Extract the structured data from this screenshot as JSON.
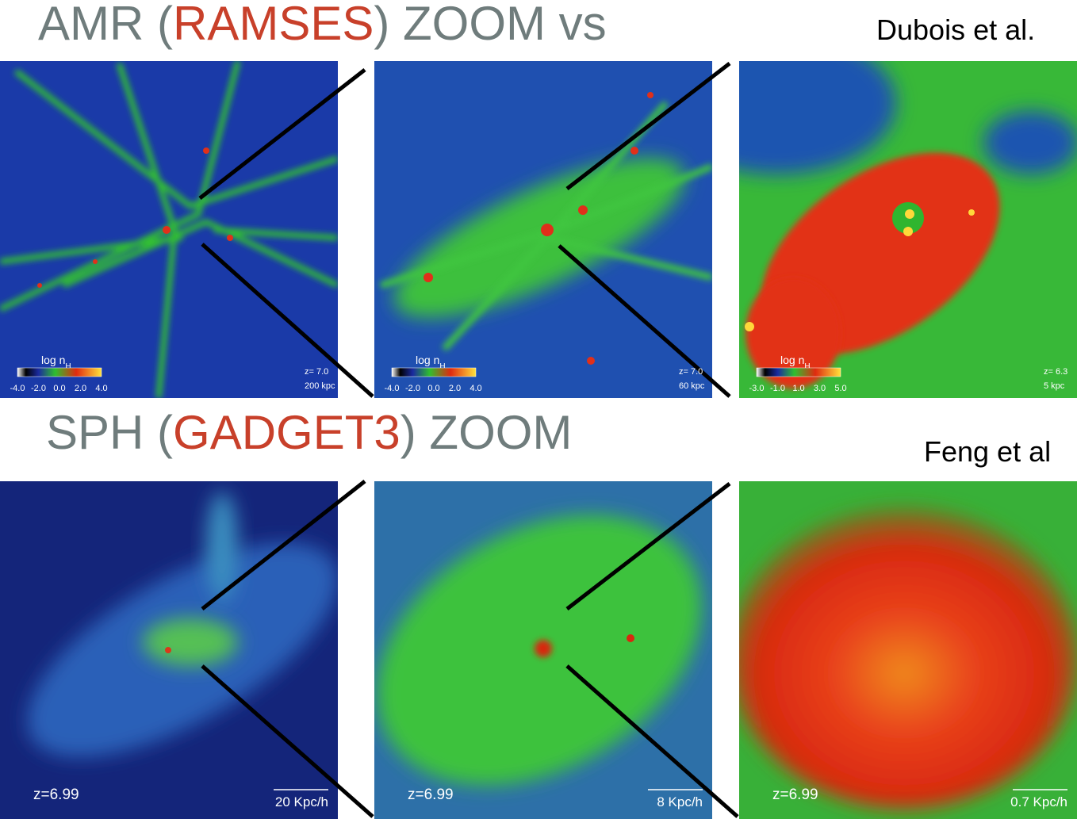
{
  "rows": [
    {
      "title_parts": [
        "AMR (",
        "RAMSES",
        ") ZOOM vs"
      ],
      "credit": "Dubois et al.",
      "panels": [
        {
          "colorbar": {
            "label": "log n",
            "label_sub": "H",
            "ticks": [
              "-4.0",
              "-2.0",
              "0.0",
              "2.0",
              "4.0"
            ]
          },
          "redshift": "z= 7.0",
          "scale": "200 kpc"
        },
        {
          "colorbar": {
            "label": "log n",
            "label_sub": "H",
            "ticks": [
              "-4.0",
              "-2.0",
              "0.0",
              "2.0",
              "4.0"
            ]
          },
          "redshift": "z= 7.0",
          "scale": "60 kpc"
        },
        {
          "colorbar": {
            "label": "log n",
            "label_sub": "H",
            "ticks": [
              "-3.0",
              "-1.0",
              "1.0",
              "3.0",
              "5.0"
            ]
          },
          "redshift": "z= 6.3",
          "scale": "5 kpc"
        }
      ]
    },
    {
      "title_parts": [
        "SPH (",
        "GADGET3",
        ") ZOOM"
      ],
      "credit": "Feng et al",
      "panels": [
        {
          "redshift": "z=6.99",
          "scale": "20 Kpc/h"
        },
        {
          "redshift": "z=6.99",
          "scale": "8 Kpc/h"
        },
        {
          "redshift": "z=6.99",
          "scale": "0.7 Kpc/h"
        }
      ]
    }
  ]
}
